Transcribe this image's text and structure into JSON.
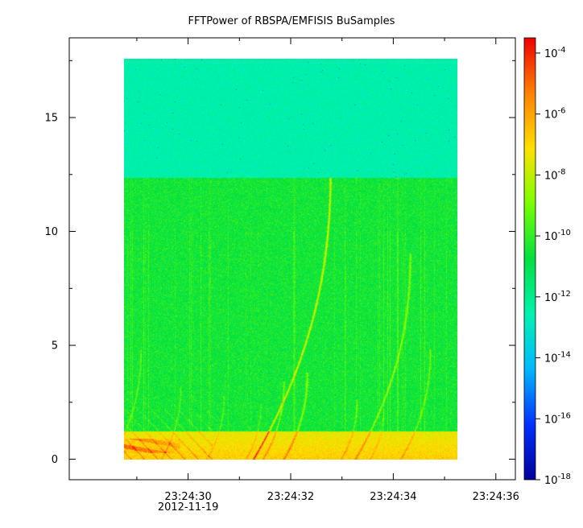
{
  "chart_data": {
    "type": "heatmap",
    "title": "FFTPower of RBSPA/EMFISIS  BuSamples",
    "xlabel": "",
    "ylabel": "",
    "x_range_seconds": [
      "23:24:28.75",
      "23:24:35.25"
    ],
    "x_ticks": [
      {
        "label": "23:24:30",
        "sublabel": "2012-11-19"
      },
      {
        "label": "23:24:32",
        "sublabel": ""
      },
      {
        "label": "23:24:34",
        "sublabel": ""
      },
      {
        "label": "23:24:36",
        "sublabel": ""
      }
    ],
    "y_ticks": [
      "0",
      "5",
      "10",
      "15"
    ],
    "ylim": [
      -0.9,
      18.5
    ],
    "data_y_range": [
      0,
      17.5
    ],
    "colorbar": {
      "scale": "log",
      "range": [
        -18,
        -3.5
      ],
      "ticks": [
        {
          "base": "10",
          "exp": "-4"
        },
        {
          "base": "10",
          "exp": "-6"
        },
        {
          "base": "10",
          "exp": "-8"
        },
        {
          "base": "10",
          "exp": "-10"
        },
        {
          "base": "10",
          "exp": "-12"
        },
        {
          "base": "10",
          "exp": "-14"
        },
        {
          "base": "10",
          "exp": "-16"
        },
        {
          "base": "10",
          "exp": "-18"
        }
      ],
      "colors": [
        "#00009a",
        "#0030ff",
        "#00b8ff",
        "#00f2b0",
        "#00e040",
        "#7aff00",
        "#ffe000",
        "#ff8000",
        "#ee0000"
      ]
    },
    "levels": {
      "upper_band_log_power": -12.5,
      "upper_band_min_freq": 12.3,
      "lower_band_log_power": -10.5,
      "base_log_power": -7.5
    }
  }
}
